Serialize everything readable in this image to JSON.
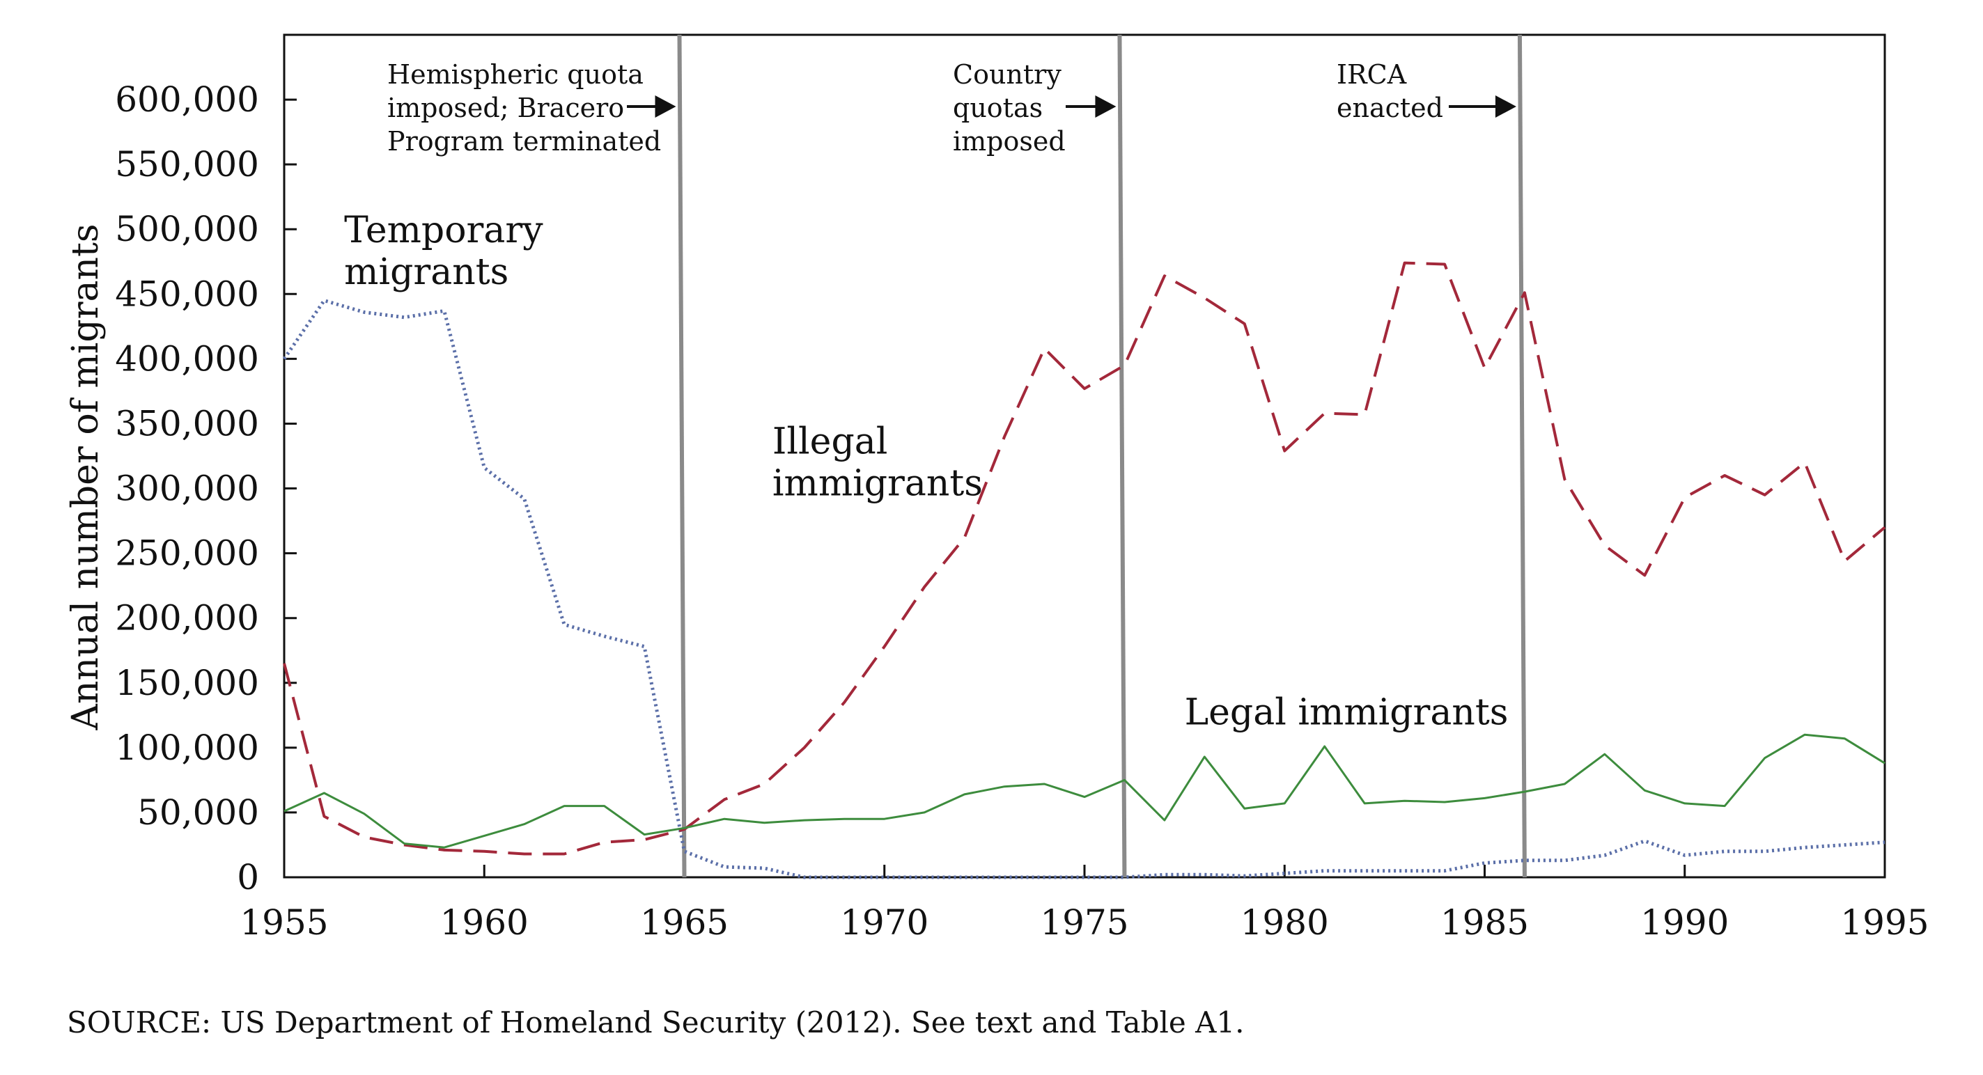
{
  "chart_data": {
    "type": "line",
    "ylabel": "Annual number of migrants",
    "xlim": [
      1955,
      1995
    ],
    "ylim": [
      0,
      650000
    ],
    "x_ticks": [
      1955,
      1960,
      1965,
      1970,
      1975,
      1980,
      1985,
      1990,
      1995
    ],
    "x_tick_labels": [
      "1955",
      "1960",
      "1965",
      "1970",
      "1975",
      "1980",
      "1985",
      "1990",
      "1995"
    ],
    "y_ticks": [
      0,
      50000,
      100000,
      150000,
      200000,
      250000,
      300000,
      350000,
      400000,
      450000,
      500000,
      550000,
      600000
    ],
    "y_tick_labels": [
      "0",
      "50,000",
      "100,000",
      "150,000",
      "200,000",
      "250,000",
      "300,000",
      "350,000",
      "400,000",
      "450,000",
      "500,000",
      "550,000",
      "600,000"
    ],
    "grid": false,
    "series": [
      {
        "name": "Temporary migrants",
        "label_lines": [
          "Temporary",
          "migrants"
        ],
        "label_anchor": [
          1956.5,
          490000
        ],
        "style": "dotted",
        "color": "#5b6fa8",
        "x": [
          1955,
          1956,
          1957,
          1958,
          1959,
          1960,
          1961,
          1962,
          1963,
          1964,
          1965,
          1966,
          1967,
          1968,
          1969,
          1970,
          1971,
          1972,
          1973,
          1974,
          1975,
          1976,
          1977,
          1978,
          1979,
          1980,
          1981,
          1982,
          1983,
          1984,
          1985,
          1986,
          1987,
          1988,
          1989,
          1990,
          1991,
          1992,
          1993,
          1994,
          1995
        ],
        "y": [
          400000,
          445000,
          436000,
          432000,
          437000,
          316000,
          292000,
          195000,
          186000,
          178000,
          20000,
          8000,
          7000,
          0,
          0,
          0,
          0,
          0,
          0,
          0,
          0,
          0,
          2000,
          2000,
          1000,
          3000,
          5000,
          5000,
          5000,
          5000,
          11000,
          13000,
          13000,
          17000,
          28000,
          17000,
          20000,
          20000,
          23000,
          25000,
          27000
        ]
      },
      {
        "name": "Illegal immigrants",
        "label_lines": [
          "Illegal",
          "immigrants"
        ],
        "label_anchor": [
          1967.2,
          327000
        ],
        "style": "dashed",
        "color": "#a3283a",
        "x": [
          1955,
          1956,
          1957,
          1958,
          1959,
          1960,
          1961,
          1962,
          1963,
          1964,
          1965,
          1966,
          1967,
          1968,
          1969,
          1970,
          1971,
          1972,
          1973,
          1974,
          1975,
          1976,
          1977,
          1978,
          1979,
          1980,
          1981,
          1982,
          1983,
          1984,
          1985,
          1986,
          1987,
          1988,
          1989,
          1990,
          1991,
          1992,
          1993,
          1994,
          1995
        ],
        "y": [
          165000,
          47000,
          31000,
          25000,
          21000,
          20000,
          18000,
          18000,
          27000,
          29000,
          37000,
          60000,
          72000,
          100000,
          135000,
          178000,
          224000,
          262000,
          340000,
          408000,
          377000,
          395000,
          464000,
          447000,
          427000,
          329000,
          358000,
          357000,
          474000,
          473000,
          393000,
          451000,
          307000,
          256000,
          233000,
          293000,
          310000,
          295000,
          320000,
          244000,
          270000
        ]
      },
      {
        "name": "Legal immigrants",
        "label_lines": [
          "Legal immigrants"
        ],
        "label_anchor": [
          1977.5,
          118000
        ],
        "style": "solid",
        "color": "#3d8c3d",
        "x": [
          1955,
          1956,
          1957,
          1958,
          1959,
          1960,
          1961,
          1962,
          1963,
          1964,
          1965,
          1966,
          1967,
          1968,
          1969,
          1970,
          1971,
          1972,
          1973,
          1974,
          1975,
          1976,
          1977,
          1978,
          1979,
          1980,
          1981,
          1982,
          1983,
          1984,
          1985,
          1986,
          1987,
          1988,
          1989,
          1990,
          1991,
          1992,
          1993,
          1994,
          1995
        ],
        "y": [
          51000,
          65000,
          49000,
          26000,
          23000,
          32000,
          41000,
          55000,
          55000,
          33000,
          38000,
          45000,
          42000,
          44000,
          45000,
          45000,
          50000,
          64000,
          70000,
          72000,
          62000,
          75000,
          44000,
          93000,
          53000,
          57000,
          101000,
          57000,
          59000,
          58000,
          61000,
          66000,
          72000,
          95000,
          67000,
          57000,
          55000,
          92000,
          110000,
          107000,
          88000
        ]
      }
    ],
    "annotations": [
      {
        "name": "event-hemispheric-quota",
        "x": 1965,
        "text_lines": [
          "Hemispheric quota",
          "imposed; Bracero",
          "Program terminated"
        ]
      },
      {
        "name": "event-country-quotas",
        "x": 1976,
        "text_lines": [
          "Country",
          "quotas",
          "imposed"
        ]
      },
      {
        "name": "event-irca",
        "x": 1986,
        "text_lines": [
          "IRCA",
          "enacted"
        ]
      }
    ],
    "source": "SOURCE: US Department of Homeland Security (2012). See text and Table A1."
  }
}
